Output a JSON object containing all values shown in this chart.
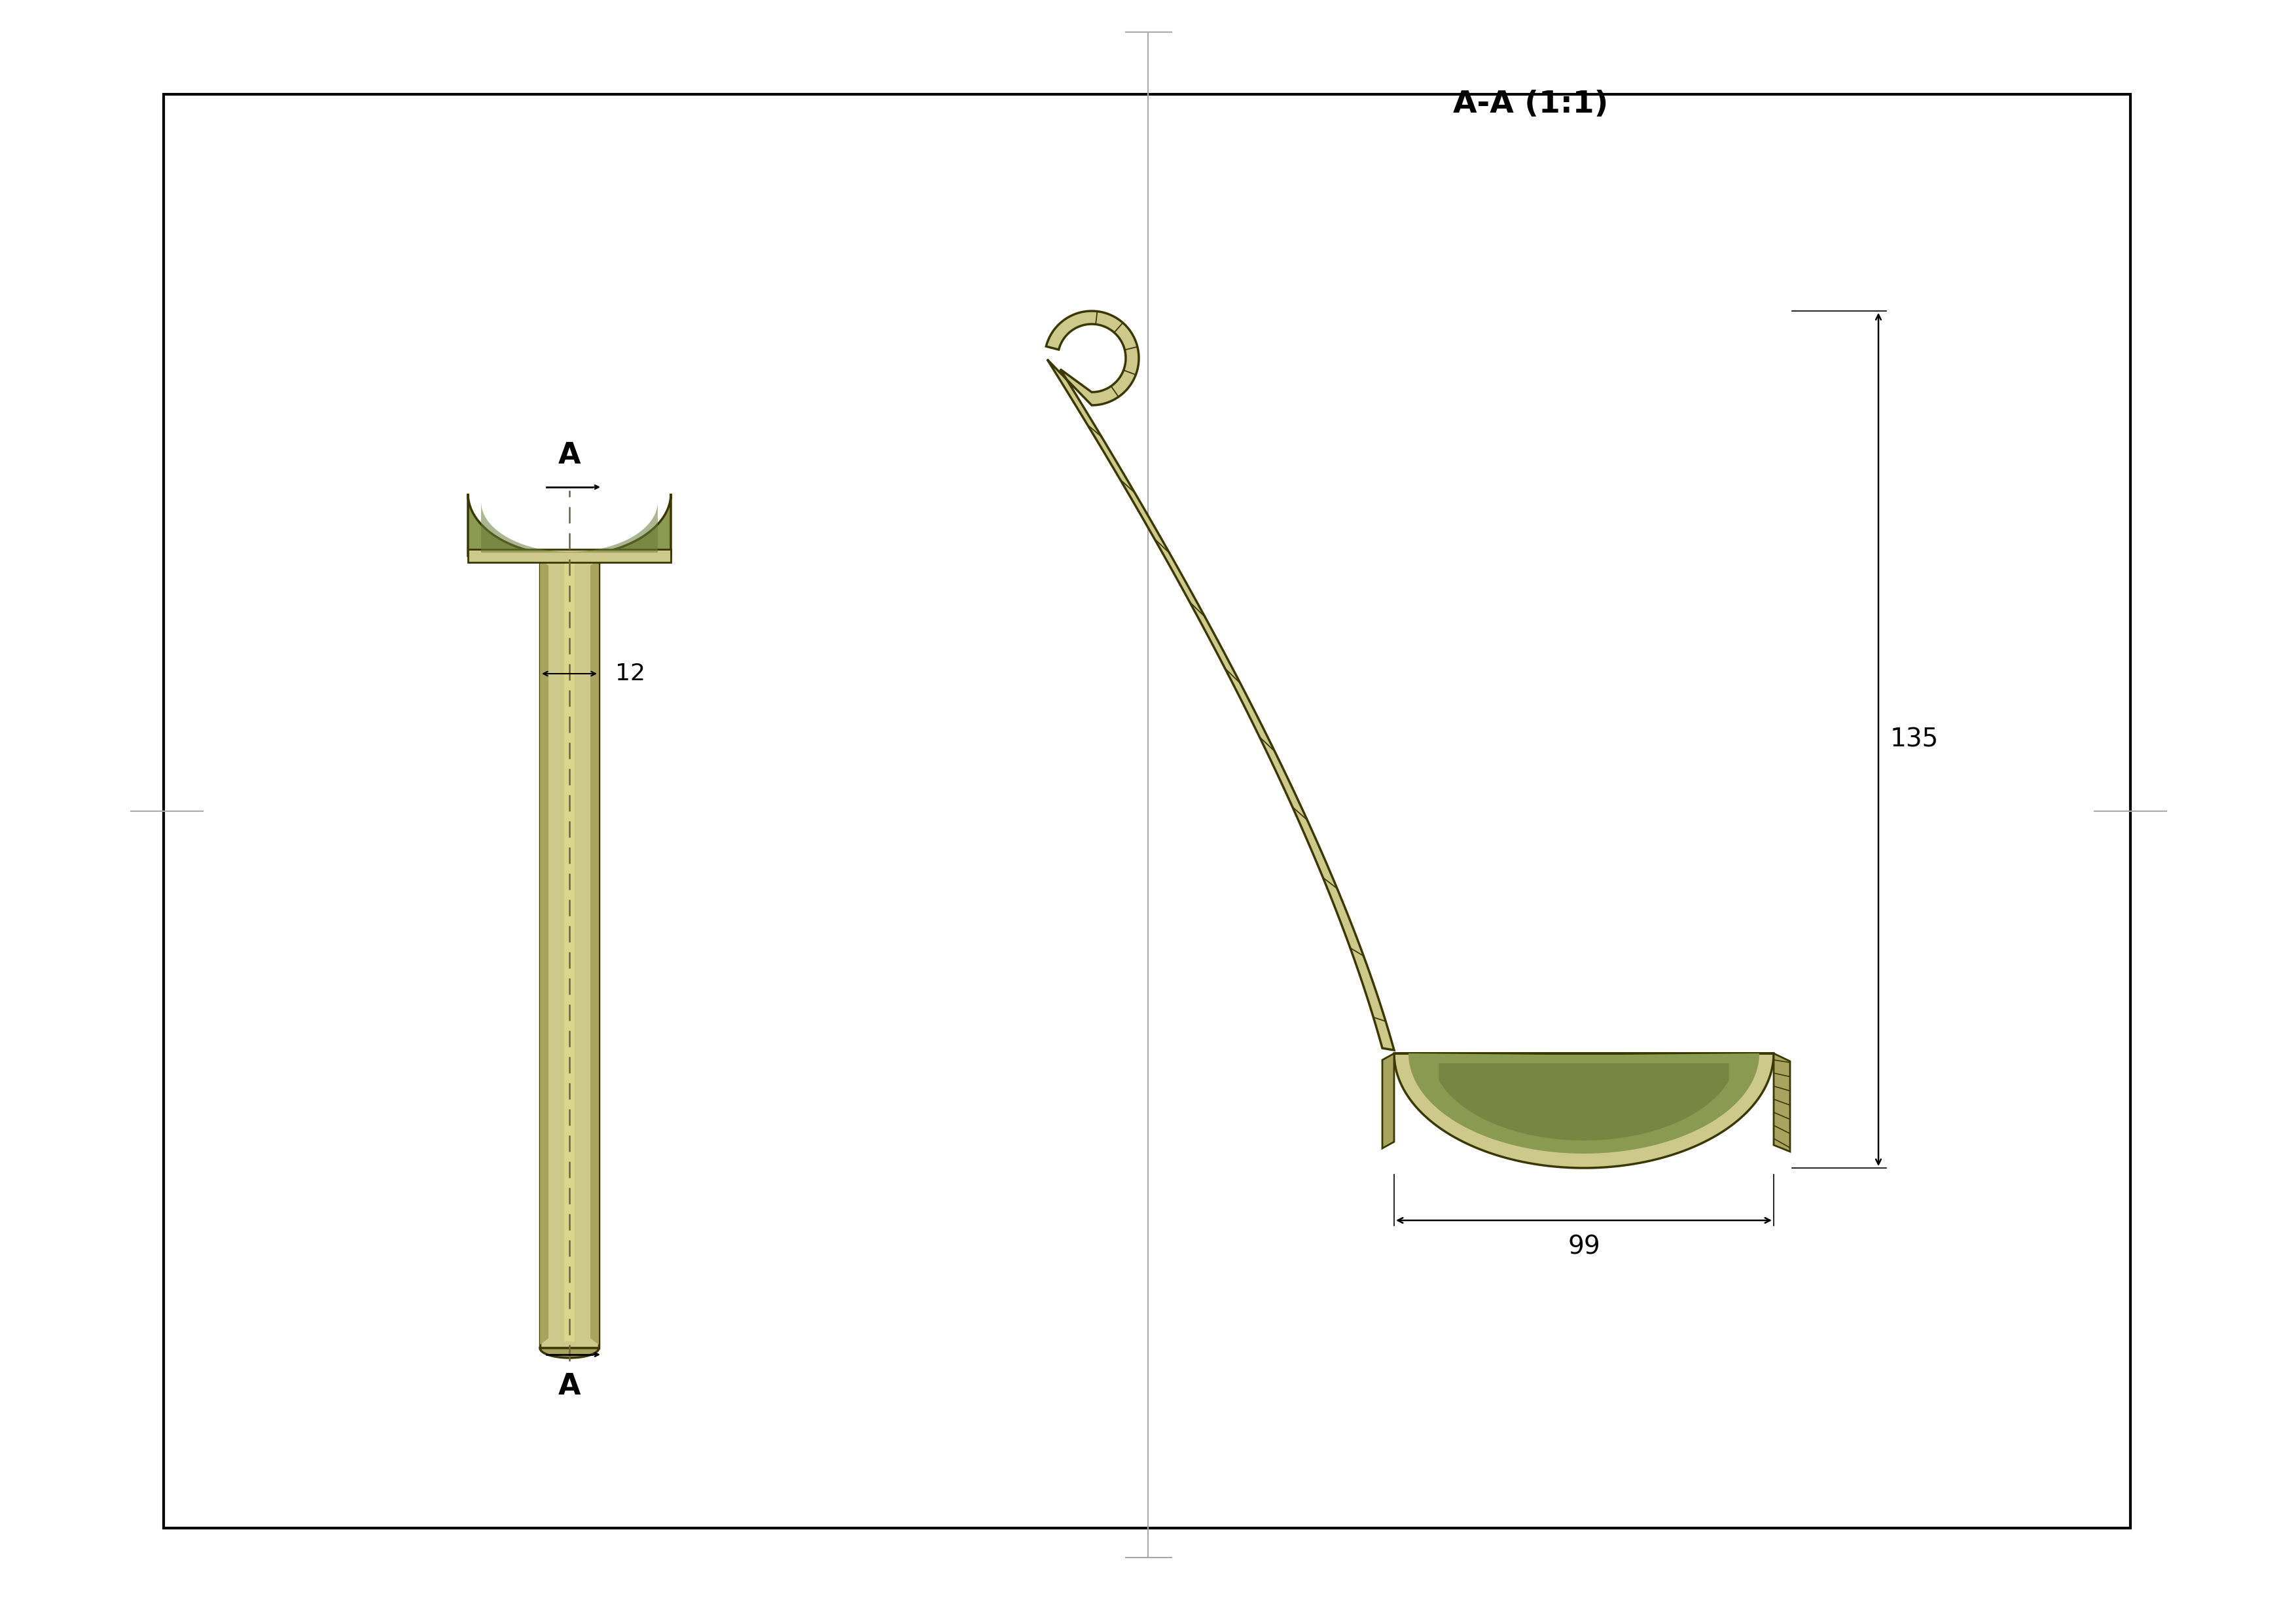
{
  "bg_color": "#ffffff",
  "border_color": "#000000",
  "body_color": "#ccc98a",
  "body_dark": "#a8a460",
  "body_darker": "#7a7a30",
  "inner_color": "#8a9a50",
  "inner_dark": "#6b7a3a",
  "outline_color": "#3a3800",
  "title_aa": "A-A (1:1)",
  "label_a": "A",
  "dim_12": "12",
  "dim_135": "135",
  "dim_99": "99"
}
